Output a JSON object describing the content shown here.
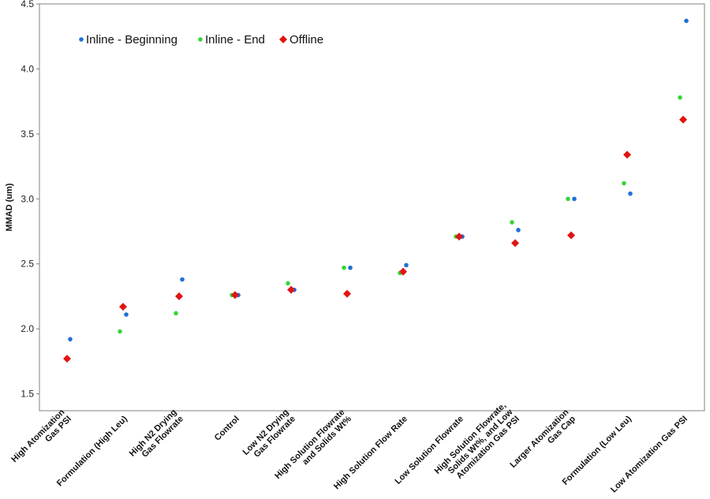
{
  "chart_data": {
    "type": "scatter",
    "ylabel": "MMAD (um)",
    "ylim": [
      1.37,
      4.5
    ],
    "yticks": [
      "1.5",
      "2.0",
      "2.5",
      "3.0",
      "3.5",
      "4.0",
      "4.5"
    ],
    "grid": false,
    "legend_position": "top-left",
    "categories": [
      [
        "High Atomization",
        "Gas PSI"
      ],
      [
        "Formulation (High Leu)"
      ],
      [
        "High N2 Drying",
        "Gas Flowrate"
      ],
      [
        "Control"
      ],
      [
        "Low N2 Drying",
        "Gas Flowrate"
      ],
      [
        "High Solution Flowrate",
        "and Solids Wt%"
      ],
      [
        "High Solution Flow Rate"
      ],
      [
        "Low Solution Flowrate"
      ],
      [
        "High Solution Flowrate,",
        "Solids Wt%, and Low",
        "Atomization Gas PSI"
      ],
      [
        "Larger Atomization",
        "Gas Cap"
      ],
      [
        "Formulation (Low Leu)"
      ],
      [
        "Low Atomization Gas PSI"
      ]
    ],
    "series": [
      {
        "name": "Inline - Beginning",
        "color": "#1f6fd6",
        "marker": "circle",
        "values": [
          1.92,
          2.11,
          2.38,
          2.26,
          2.3,
          2.47,
          2.49,
          2.71,
          2.76,
          3.0,
          3.04,
          4.37
        ]
      },
      {
        "name": "Inline - End",
        "color": "#39d43a",
        "marker": "circle",
        "values": [
          null,
          1.98,
          2.12,
          2.26,
          2.35,
          2.47,
          2.43,
          2.71,
          2.82,
          3.0,
          3.12,
          3.78
        ]
      },
      {
        "name": "Offline",
        "color": "#e01414",
        "marker": "diamond",
        "values": [
          1.77,
          2.17,
          2.25,
          2.26,
          2.3,
          2.27,
          2.44,
          2.71,
          2.66,
          2.72,
          3.34,
          3.61
        ]
      }
    ]
  }
}
